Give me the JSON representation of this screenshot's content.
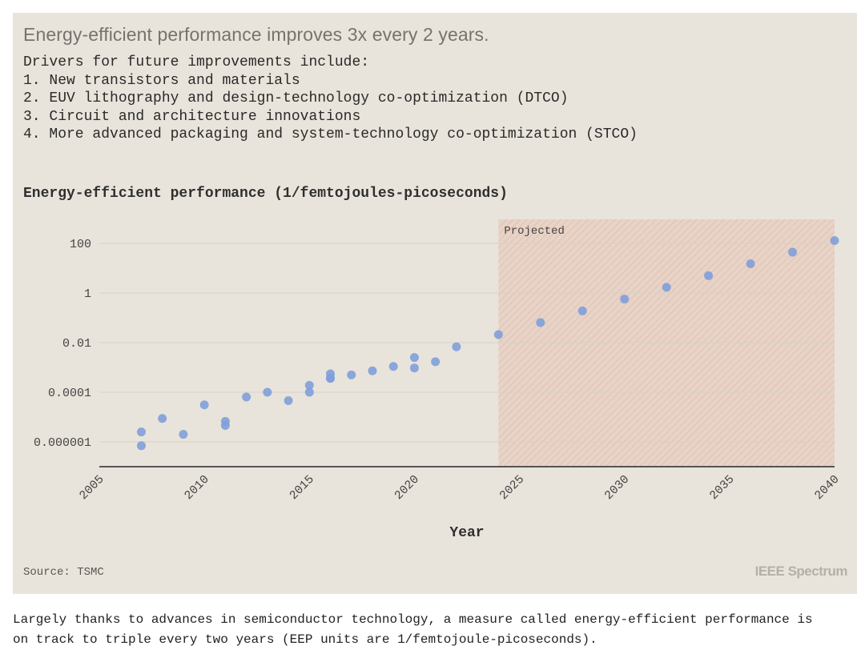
{
  "card": {
    "headline": "Energy-efficient performance improves 3x every 2 years.",
    "drivers": [
      "Drivers for future improvements include:",
      "1. New transistors and materials",
      "2. EUV lithography and design-technology co-optimization (DTCO)",
      "3. Circuit and architecture innovations",
      "4. More advanced packaging and system-technology co-optimization (STCO)"
    ],
    "source": "Source: TSMC",
    "brand": "IEEE Spectrum"
  },
  "caption": "Largely thanks to advances in semiconductor technology, a measure called energy-efficient performance is on track to triple every two years (EEP units are 1/femtojoule-picoseconds).",
  "colors": {
    "card_bg": "#e9e4db",
    "point": "#7f9fd9",
    "projected_fill": "#e8d2c6",
    "axis": "#555555",
    "grid": "#d6d1c8"
  },
  "chart_data": {
    "type": "scatter",
    "title": "Energy-efficient performance (1/femtojoules-picoseconds)",
    "xlabel": "Year",
    "ylabel": "",
    "xlim": [
      2005,
      2040
    ],
    "ylim": [
      1e-07,
      1000
    ],
    "yscale": "log",
    "grid": "horizontal",
    "x_ticks": [
      2005,
      2010,
      2015,
      2020,
      2025,
      2030,
      2035,
      2040
    ],
    "y_ticks": [
      {
        "value": 1e-06,
        "label": "0.000001"
      },
      {
        "value": 0.0001,
        "label": "0.0001"
      },
      {
        "value": 0.01,
        "label": "0.01"
      },
      {
        "value": 1,
        "label": "1"
      },
      {
        "value": 100,
        "label": "100"
      }
    ],
    "projected_region": {
      "label": "Projected",
      "x_start": 2024,
      "x_end": 2040
    },
    "points": [
      {
        "x": 2007,
        "y": 2.5e-06
      },
      {
        "x": 2007,
        "y": 7e-07
      },
      {
        "x": 2008,
        "y": 8.8e-06
      },
      {
        "x": 2009,
        "y": 2e-06
      },
      {
        "x": 2010,
        "y": 3.1e-05
      },
      {
        "x": 2011,
        "y": 6.7e-06
      },
      {
        "x": 2011,
        "y": 4.6e-06
      },
      {
        "x": 2012,
        "y": 6.4e-05
      },
      {
        "x": 2013,
        "y": 0.0001
      },
      {
        "x": 2014,
        "y": 4.6e-05
      },
      {
        "x": 2015,
        "y": 0.00019
      },
      {
        "x": 2015,
        "y": 0.0001
      },
      {
        "x": 2016,
        "y": 0.00055
      },
      {
        "x": 2016,
        "y": 0.00037
      },
      {
        "x": 2016,
        "y": 0.00036
      },
      {
        "x": 2017,
        "y": 0.0005
      },
      {
        "x": 2018,
        "y": 0.00073
      },
      {
        "x": 2019,
        "y": 0.0011
      },
      {
        "x": 2020,
        "y": 0.0025
      },
      {
        "x": 2020,
        "y": 0.00095
      },
      {
        "x": 2021,
        "y": 0.0017
      },
      {
        "x": 2022,
        "y": 0.0068
      },
      {
        "x": 2024,
        "y": 0.021
      },
      {
        "x": 2026,
        "y": 0.064
      },
      {
        "x": 2028,
        "y": 0.19
      },
      {
        "x": 2030,
        "y": 0.57
      },
      {
        "x": 2032,
        "y": 1.7
      },
      {
        "x": 2034,
        "y": 5
      },
      {
        "x": 2036,
        "y": 15
      },
      {
        "x": 2038,
        "y": 44
      },
      {
        "x": 2040,
        "y": 130
      }
    ]
  }
}
